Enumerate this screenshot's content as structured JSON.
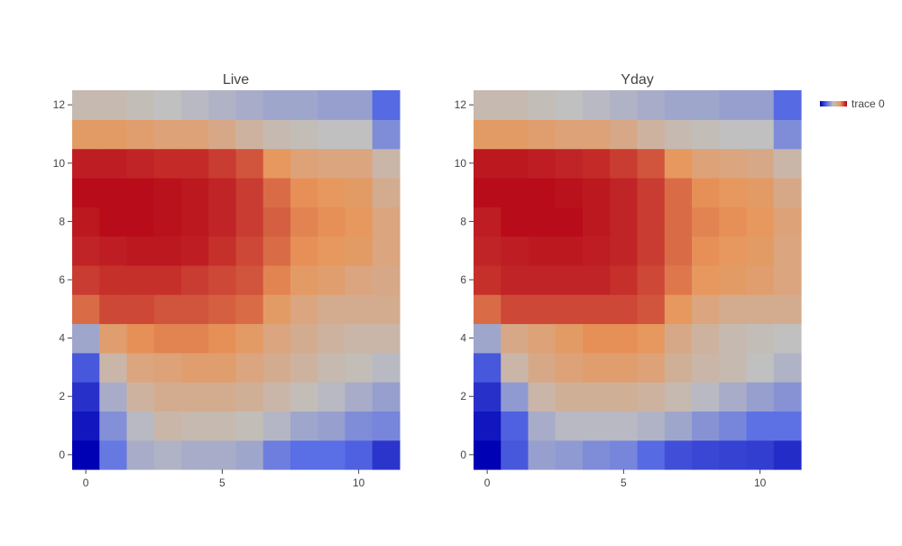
{
  "chart_data": [
    {
      "type": "heatmap",
      "title": "Live",
      "xlabel": "",
      "ylabel": "",
      "x_ticks": [
        0,
        5,
        10
      ],
      "y_ticks": [
        0,
        2,
        4,
        6,
        8,
        10,
        12
      ],
      "xlim": [
        -0.5,
        11.5
      ],
      "ylim": [
        -0.5,
        12.5
      ],
      "z": [
        [
          0.0,
          0.28,
          0.44,
          0.46,
          0.44,
          0.44,
          0.42,
          0.3,
          0.25,
          0.25,
          0.22,
          0.12
        ],
        [
          0.05,
          0.35,
          0.48,
          0.56,
          0.54,
          0.54,
          0.52,
          0.47,
          0.42,
          0.4,
          0.34,
          0.32
        ],
        [
          0.11,
          0.44,
          0.58,
          0.62,
          0.62,
          0.62,
          0.6,
          0.56,
          0.52,
          0.48,
          0.44,
          0.4
        ],
        [
          0.2,
          0.56,
          0.66,
          0.68,
          0.7,
          0.7,
          0.66,
          0.62,
          0.58,
          0.54,
          0.52,
          0.48
        ],
        [
          0.42,
          0.7,
          0.76,
          0.78,
          0.78,
          0.76,
          0.72,
          0.66,
          0.62,
          0.58,
          0.56,
          0.56
        ],
        [
          0.82,
          0.88,
          0.88,
          0.86,
          0.86,
          0.84,
          0.82,
          0.72,
          0.66,
          0.62,
          0.62,
          0.62
        ],
        [
          0.9,
          0.92,
          0.92,
          0.92,
          0.9,
          0.88,
          0.86,
          0.78,
          0.72,
          0.7,
          0.66,
          0.64
        ],
        [
          0.94,
          0.95,
          0.96,
          0.96,
          0.95,
          0.92,
          0.88,
          0.82,
          0.76,
          0.74,
          0.72,
          0.66
        ],
        [
          0.96,
          0.98,
          0.98,
          0.97,
          0.96,
          0.94,
          0.9,
          0.84,
          0.78,
          0.76,
          0.74,
          0.66
        ],
        [
          0.98,
          0.98,
          0.98,
          0.97,
          0.96,
          0.94,
          0.9,
          0.82,
          0.76,
          0.74,
          0.72,
          0.62
        ],
        [
          0.95,
          0.95,
          0.94,
          0.93,
          0.93,
          0.9,
          0.86,
          0.74,
          0.68,
          0.66,
          0.66,
          0.56
        ],
        [
          0.72,
          0.72,
          0.7,
          0.68,
          0.68,
          0.64,
          0.58,
          0.54,
          0.52,
          0.5,
          0.5,
          0.34
        ],
        [
          0.54,
          0.54,
          0.52,
          0.5,
          0.48,
          0.46,
          0.44,
          0.42,
          0.42,
          0.4,
          0.4,
          0.24
        ]
      ]
    },
    {
      "type": "heatmap",
      "title": "Yday",
      "xlabel": "",
      "ylabel": "",
      "x_ticks": [
        0,
        5,
        10
      ],
      "y_ticks": [
        0,
        2,
        4,
        6,
        8,
        10,
        12
      ],
      "xlim": [
        -0.5,
        11.5
      ],
      "ylim": [
        -0.5,
        12.5
      ],
      "z": [
        [
          0.0,
          0.2,
          0.4,
          0.38,
          0.34,
          0.32,
          0.24,
          0.18,
          0.16,
          0.15,
          0.14,
          0.1
        ],
        [
          0.05,
          0.22,
          0.44,
          0.48,
          0.48,
          0.48,
          0.46,
          0.42,
          0.36,
          0.32,
          0.26,
          0.26
        ],
        [
          0.11,
          0.38,
          0.56,
          0.6,
          0.6,
          0.6,
          0.58,
          0.54,
          0.48,
          0.44,
          0.4,
          0.36
        ],
        [
          0.2,
          0.56,
          0.64,
          0.68,
          0.7,
          0.7,
          0.68,
          0.6,
          0.56,
          0.54,
          0.5,
          0.46
        ],
        [
          0.42,
          0.64,
          0.68,
          0.72,
          0.76,
          0.76,
          0.74,
          0.64,
          0.58,
          0.54,
          0.52,
          0.5
        ],
        [
          0.82,
          0.88,
          0.88,
          0.88,
          0.88,
          0.88,
          0.86,
          0.74,
          0.66,
          0.62,
          0.62,
          0.62
        ],
        [
          0.92,
          0.94,
          0.94,
          0.94,
          0.94,
          0.92,
          0.88,
          0.8,
          0.74,
          0.72,
          0.7,
          0.66
        ],
        [
          0.94,
          0.95,
          0.96,
          0.96,
          0.95,
          0.94,
          0.9,
          0.82,
          0.76,
          0.74,
          0.72,
          0.66
        ],
        [
          0.95,
          0.98,
          0.98,
          0.98,
          0.96,
          0.94,
          0.9,
          0.82,
          0.78,
          0.76,
          0.74,
          0.68
        ],
        [
          0.98,
          0.98,
          0.98,
          0.97,
          0.96,
          0.94,
          0.9,
          0.82,
          0.76,
          0.74,
          0.72,
          0.64
        ],
        [
          0.96,
          0.96,
          0.95,
          0.94,
          0.93,
          0.9,
          0.86,
          0.74,
          0.68,
          0.66,
          0.64,
          0.56
        ],
        [
          0.72,
          0.72,
          0.7,
          0.68,
          0.68,
          0.64,
          0.58,
          0.54,
          0.52,
          0.5,
          0.5,
          0.34
        ],
        [
          0.54,
          0.54,
          0.52,
          0.5,
          0.48,
          0.46,
          0.44,
          0.42,
          0.42,
          0.4,
          0.4,
          0.24
        ]
      ]
    }
  ],
  "legend": {
    "label": "trace 0",
    "placement": "top-right"
  },
  "colorscale": [
    "#0000b4",
    "#5a6ee6",
    "#c0c0c0",
    "#e8965a",
    "#b40015"
  ],
  "axis_color": "#444444",
  "title_color": "#444444"
}
